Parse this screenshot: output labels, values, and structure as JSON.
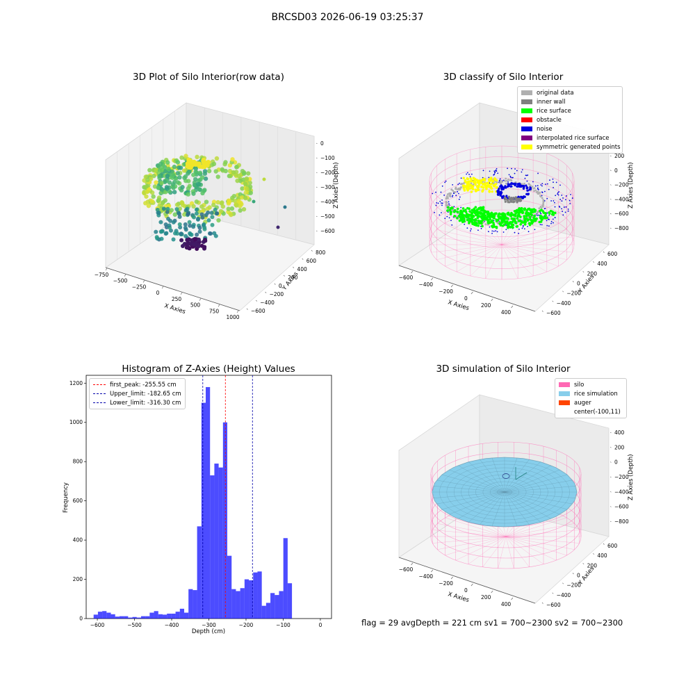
{
  "figure": {
    "title": "BRCSD03 2026-06-19 03:25:37"
  },
  "status": {
    "text": "flag = 29  avgDepth = 221 cm  sv1 = 700~2300  sv2 = 700~2300"
  },
  "panels": {
    "raw": {
      "title": "3D Plot of Silo Interior(row data)",
      "xlabel": "X Axies",
      "ylabel": "Y Axies",
      "zlabel": "Z Axies (Depth)",
      "xticks": [
        "−750",
        "−500",
        "−250",
        "0",
        "250",
        "500",
        "750",
        "1000"
      ],
      "yticks": [
        "−600",
        "−400",
        "−200",
        "0",
        "200",
        "400",
        "600",
        "800"
      ],
      "zticks": [
        "0",
        "−100",
        "−200",
        "−300",
        "−400",
        "−500",
        "−600"
      ]
    },
    "classify": {
      "title": "3D classify of Silo Interior",
      "xlabel": "X Axies",
      "ylabel": "Y Axies",
      "zlabel": "Z Axies (Depth)",
      "xticks": [
        "−600",
        "−400",
        "−200",
        "0",
        "200",
        "400"
      ],
      "yticks": [
        "−600",
        "−400",
        "−200",
        "0",
        "200",
        "400",
        "600"
      ],
      "zticks": [
        "200",
        "0",
        "−200",
        "−400",
        "−600",
        "−800"
      ],
      "legend": [
        {
          "label": "original data",
          "color": "#b0b0b0"
        },
        {
          "label": "inner wall",
          "color": "#808080"
        },
        {
          "label": "rice surface",
          "color": "#00ff00"
        },
        {
          "label": "obstacle",
          "color": "#ff0000"
        },
        {
          "label": "noise",
          "color": "#0000dd"
        },
        {
          "label": "interpolated rice surface",
          "color": "#800080"
        },
        {
          "label": "symmetric generated points",
          "color": "#ffff00"
        }
      ]
    },
    "simulation": {
      "title": "3D simulation of Silo Interior",
      "xlabel": "X Axies",
      "ylabel": "Y Axies",
      "zlabel": "Z Axies (Depth)",
      "xticks": [
        "−600",
        "−400",
        "−200",
        "0",
        "200",
        "400"
      ],
      "yticks": [
        "−600",
        "−400",
        "−200",
        "0",
        "200",
        "400",
        "600"
      ],
      "zticks": [
        "400",
        "200",
        "0",
        "−200",
        "−400",
        "−600",
        "−800"
      ],
      "legend": [
        {
          "label": "silo",
          "color": "#ff69b4"
        },
        {
          "label": "rice simulation",
          "color": "#87ceeb"
        },
        {
          "label": "auger",
          "color": "#ff4500"
        },
        {
          "label": "center(-100,11)",
          "color": "#ffffff"
        }
      ]
    }
  },
  "chart_data": {
    "type": "bar",
    "title": "Histogram of Z-Axies (Height) Values",
    "xlabel": "Depth (cm)",
    "ylabel": "Frequency",
    "xlim": [
      -630,
      30
    ],
    "ylim": [
      0,
      1240
    ],
    "xticks": [
      -600,
      -500,
      -400,
      -300,
      -200,
      -100,
      0
    ],
    "yticks": [
      0,
      200,
      400,
      600,
      800,
      1000,
      1200
    ],
    "bar_color": "#0000ff",
    "bin_start": -610,
    "bin_width": 11.6,
    "values": [
      20,
      35,
      38,
      30,
      22,
      10,
      12,
      12,
      5,
      8,
      5,
      12,
      12,
      30,
      38,
      22,
      20,
      25,
      25,
      35,
      50,
      30,
      150,
      145,
      470,
      1100,
      1180,
      730,
      790,
      770,
      1000,
      320,
      150,
      140,
      155,
      200,
      195,
      235,
      240,
      65,
      80,
      130,
      120,
      140,
      410,
      180
    ],
    "lines": [
      {
        "label": "first_peak: -255.55 cm",
        "x": -255.55,
        "color": "#ff0000"
      },
      {
        "label": "Upper_limit: -182.65 cm",
        "x": -182.65,
        "color": "#0000aa"
      },
      {
        "label": "Lower_limit: -316.30 cm",
        "x": -316.3,
        "color": "#0000aa"
      }
    ],
    "legend_position": "top-left"
  }
}
